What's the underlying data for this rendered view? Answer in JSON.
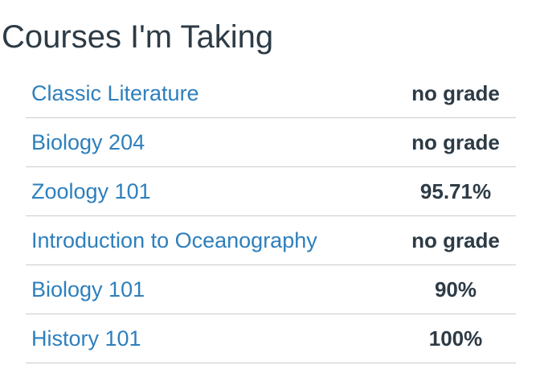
{
  "page": {
    "title": "Courses I'm Taking"
  },
  "colors": {
    "link": "#2d7fbd",
    "text": "#2d3b45",
    "divider": "#c7cdd1"
  },
  "courses": [
    {
      "name": "Classic Literature",
      "grade": "no grade"
    },
    {
      "name": "Biology 204",
      "grade": "no grade"
    },
    {
      "name": "Zoology 101",
      "grade": "95.71%"
    },
    {
      "name": "Introduction to Oceanography",
      "grade": "no grade"
    },
    {
      "name": "Biology 101",
      "grade": "90%"
    },
    {
      "name": "History 101",
      "grade": "100%"
    }
  ]
}
